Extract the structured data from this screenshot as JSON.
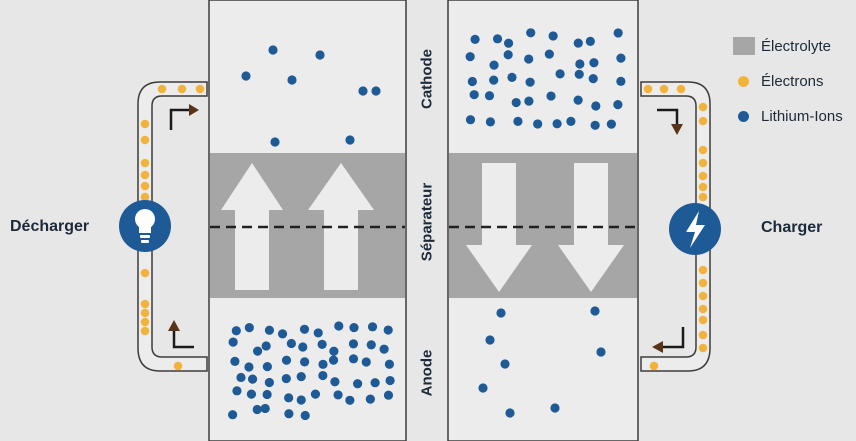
{
  "labels": {
    "discharge": "Décharger",
    "charge": "Charger",
    "cathode": "Cathode",
    "separator": "Séparateur",
    "anode": "Anode"
  },
  "legend": [
    {
      "label": "Électrolyte",
      "kind": "swatch",
      "color": "#a6a6a6"
    },
    {
      "label": "Électrons",
      "kind": "dot",
      "color": "#f2b33d"
    },
    {
      "label": "Lithium-Ions",
      "kind": "dot",
      "color": "#1e5a96"
    }
  ],
  "colors": {
    "background": "#e7e7e7",
    "cell": "#ececec",
    "electrolyte": "#a6a6a6",
    "arrow": "#ececec",
    "wire_fill": "#ececec",
    "wire_stroke": "#3c3c3c",
    "electron": "#f2b33d",
    "ion": "#1e5a96",
    "flow_arrow": "#5a3418",
    "icon_bg": "#1e5a96"
  },
  "icons": {
    "discharge": "light-bulb-icon",
    "charge": "lightning-bolt-icon"
  },
  "ion_counts": {
    "left_cathode": 7,
    "left_anode": 55,
    "right_cathode": 40,
    "right_anode": 8
  }
}
